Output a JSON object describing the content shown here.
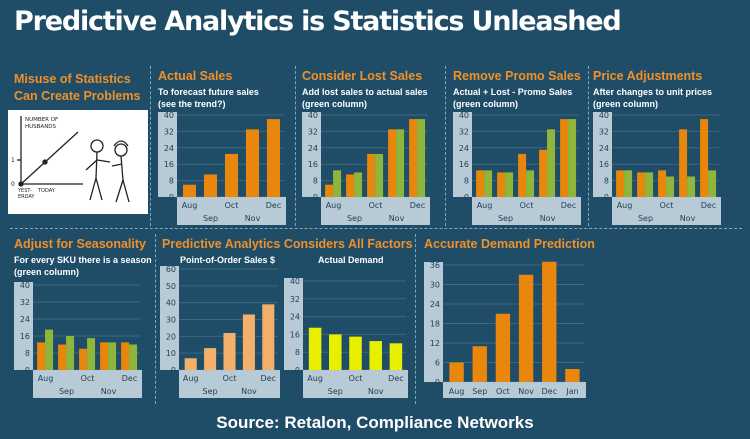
{
  "header": {
    "title": "Predictive Analytics is Statistics Unleashed"
  },
  "footer": {
    "source": "Source: Retalon, Compliance Networks"
  },
  "panels": {
    "misuse": {
      "title_line1": "Misuse of Statistics",
      "title_line2": "Can Create Problems",
      "comic": {
        "axis_label_1": "NUMBER OF",
        "axis_label_2": "HUSBANDS",
        "tick_1": "1",
        "tick_0": "0",
        "x_label_1a": "YEST-",
        "x_label_1b": "ERDAY",
        "x_label_2": "TODAY"
      }
    },
    "actual_sales": {
      "title": "Actual Sales",
      "sub1": "To forecast future sales",
      "sub2": "(see the trend?)"
    },
    "lost_sales": {
      "title": "Consider Lost Sales",
      "sub1": "Add lost sales to actual sales",
      "sub2": "(green column)"
    },
    "promo": {
      "title": "Remove Promo Sales",
      "sub1": "Actual + Lost - Promo Sales",
      "sub2": "(green column)"
    },
    "price": {
      "title": "Price Adjustments",
      "sub1": "After changes to unit prices",
      "sub2": "(green column)"
    },
    "seasonality": {
      "title": "Adjust for Seasonality",
      "sub1": "For every SKU there is a season",
      "sub2": "(green column)"
    },
    "all_factors": {
      "title": "Predictive Analytics Considers All Factors",
      "sub_left": "Point-of-Order Sales $",
      "sub_right": "Actual Demand"
    },
    "accurate": {
      "title": "Accurate Demand Prediction"
    }
  },
  "colors": {
    "background": "#1f4d68",
    "orange": "#e8870c",
    "green": "#8fb63a",
    "peach": "#f4b06b",
    "yellow": "#e8f000",
    "axis_band": "#b7cad6",
    "title_orange": "#f0902a"
  },
  "chart_data": [
    {
      "id": "actual_sales",
      "type": "bar",
      "ylim": [
        0,
        40
      ],
      "yticks": [
        0,
        8,
        16,
        24,
        32,
        40
      ],
      "xlabels_top": [
        "Aug",
        "Oct",
        "Dec"
      ],
      "xlabels_bottom": [
        "Sep",
        "Nov"
      ],
      "series": [
        {
          "color": "#e8870c",
          "values": [
            6,
            11,
            21,
            33,
            38
          ]
        }
      ]
    },
    {
      "id": "lost_sales",
      "type": "bar",
      "ylim": [
        0,
        40
      ],
      "yticks": [
        0,
        8,
        16,
        24,
        32,
        40
      ],
      "xlabels_top": [
        "Aug",
        "Oct",
        "Dec"
      ],
      "xlabels_bottom": [
        "Sep",
        "Nov"
      ],
      "series": [
        {
          "color": "#e8870c",
          "values": [
            6,
            11,
            21,
            33,
            38
          ]
        },
        {
          "color": "#8fb63a",
          "values": [
            13,
            12,
            21,
            33,
            38
          ]
        }
      ]
    },
    {
      "id": "promo",
      "type": "bar",
      "ylim": [
        0,
        40
      ],
      "yticks": [
        0,
        8,
        16,
        24,
        32,
        40
      ],
      "xlabels_top": [
        "Aug",
        "Oct",
        "Dec"
      ],
      "xlabels_bottom": [
        "Sep",
        "Nov"
      ],
      "series": [
        {
          "color": "#e8870c",
          "values": [
            13,
            12,
            21,
            23,
            38
          ]
        },
        {
          "color": "#8fb63a",
          "values": [
            13,
            12,
            13,
            33,
            38
          ]
        }
      ]
    },
    {
      "id": "price",
      "type": "bar",
      "ylim": [
        0,
        40
      ],
      "yticks": [
        0,
        8,
        16,
        24,
        32,
        40
      ],
      "xlabels_top": [
        "Aug",
        "Oct",
        "Dec"
      ],
      "xlabels_bottom": [
        "Sep",
        "Nov"
      ],
      "series": [
        {
          "color": "#e8870c",
          "values": [
            13,
            12,
            13,
            33,
            38
          ]
        },
        {
          "color": "#8fb63a",
          "values": [
            13,
            12,
            10,
            10,
            13
          ]
        }
      ]
    },
    {
      "id": "seasonality",
      "type": "bar",
      "ylim": [
        0,
        40
      ],
      "yticks": [
        0,
        8,
        16,
        24,
        32,
        40
      ],
      "xlabels_top": [
        "Aug",
        "Oct",
        "Dec"
      ],
      "xlabels_bottom": [
        "Sep",
        "Nov"
      ],
      "series": [
        {
          "color": "#e8870c",
          "values": [
            13,
            12,
            10,
            13,
            13
          ]
        },
        {
          "color": "#8fb63a",
          "values": [
            19,
            16,
            15,
            13,
            12
          ]
        }
      ]
    },
    {
      "id": "pos_sales",
      "type": "bar",
      "ylim": [
        0,
        60
      ],
      "yticks": [
        0,
        10,
        20,
        30,
        40,
        50,
        60
      ],
      "xlabels_top": [
        "Aug",
        "Oct",
        "Dec"
      ],
      "xlabels_bottom": [
        "Sep",
        "Nov"
      ],
      "series": [
        {
          "color": "#f4b06b",
          "values": [
            7,
            13,
            22,
            33,
            39
          ]
        }
      ]
    },
    {
      "id": "actual_demand",
      "type": "bar",
      "ylim": [
        0,
        40
      ],
      "yticks": [
        0,
        8,
        16,
        24,
        32,
        40
      ],
      "xlabels_top": [
        "Aug",
        "Oct",
        "Dec"
      ],
      "xlabels_bottom": [
        "Sep",
        "Nov"
      ],
      "series": [
        {
          "color": "#e8f000",
          "values": [
            19,
            16,
            15,
            13,
            12
          ]
        }
      ]
    },
    {
      "id": "accurate",
      "type": "bar",
      "ylim": [
        0,
        36
      ],
      "yticks": [
        0,
        6,
        12,
        18,
        24,
        30,
        36
      ],
      "xlabels_top": [
        "Aug",
        "Sep",
        "Oct",
        "Nov",
        "Dec",
        "Jan"
      ],
      "series": [
        {
          "color": "#e8870c",
          "values": [
            6,
            11,
            21,
            33,
            37,
            4
          ]
        }
      ]
    }
  ]
}
